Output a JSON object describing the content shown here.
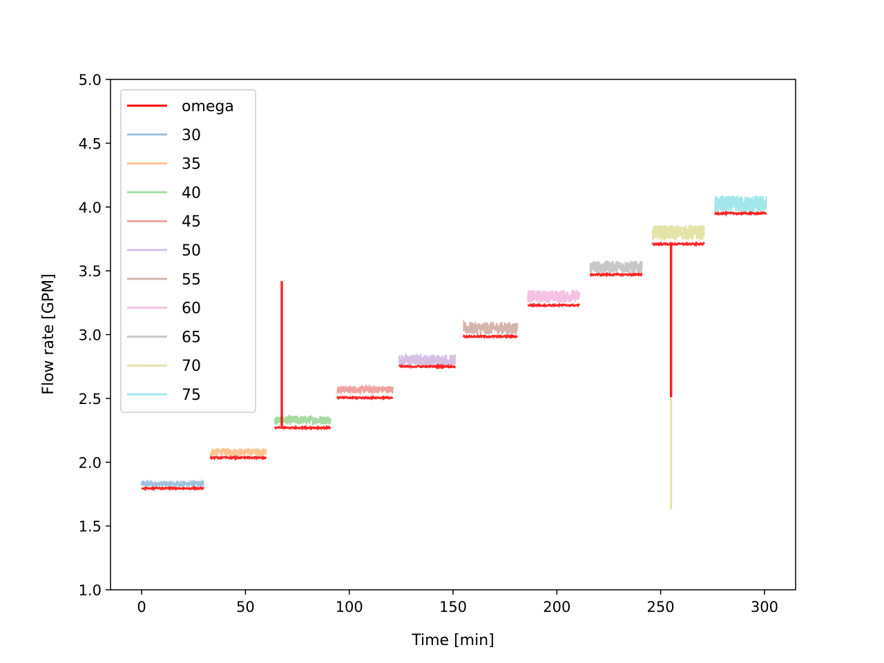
{
  "chart_data": {
    "type": "line",
    "title": "",
    "xlabel": "Time [min]",
    "ylabel": "Flow rate [GPM]",
    "xlim": [
      -15,
      315
    ],
    "ylim": [
      1.0,
      5.0
    ],
    "x_ticks": [
      0,
      50,
      100,
      150,
      200,
      250,
      300
    ],
    "x_tick_labels": [
      "0",
      "50",
      "100",
      "150",
      "200",
      "250",
      "300"
    ],
    "y_ticks": [
      1.0,
      1.5,
      2.0,
      2.5,
      3.0,
      3.5,
      4.0,
      4.5,
      5.0
    ],
    "y_tick_labels": [
      "1.0",
      "1.5",
      "2.0",
      "2.5",
      "3.0",
      "3.5",
      "4.0",
      "4.5",
      "5.0"
    ],
    "grid": false,
    "legend_position": "top-left",
    "series": [
      {
        "name": "30",
        "color": "#9fc2de",
        "x_range": [
          0,
          30
        ],
        "mean": 1.83,
        "band": 0.025
      },
      {
        "name": "35",
        "color": "#ffc592",
        "x_range": [
          33,
          60
        ],
        "mean": 2.08,
        "band": 0.03
      },
      {
        "name": "40",
        "color": "#a6dba1",
        "x_range": [
          64,
          91
        ],
        "mean": 2.33,
        "band": 0.035
      },
      {
        "name": "45",
        "color": "#efa3a1",
        "x_range": [
          94,
          121
        ],
        "mean": 2.57,
        "band": 0.03
      },
      {
        "name": "50",
        "color": "#d5c0e4",
        "x_range": [
          124,
          151
        ],
        "mean": 2.8,
        "band": 0.045
      },
      {
        "name": "55",
        "color": "#d3b6ae",
        "x_range": [
          155,
          181
        ],
        "mean": 3.05,
        "band": 0.05
      },
      {
        "name": "60",
        "color": "#f5c2e3",
        "x_range": [
          186,
          211
        ],
        "mean": 3.3,
        "band": 0.05
      },
      {
        "name": "65",
        "color": "#c7c7c7",
        "x_range": [
          216,
          241
        ],
        "mean": 3.53,
        "band": 0.05
      },
      {
        "name": "70",
        "color": "#e4e4a8",
        "x_range": [
          246,
          271
        ],
        "mean": 3.8,
        "band": 0.06,
        "spike": {
          "x": 255,
          "y_min": 1.63,
          "y_max": 3.72
        }
      },
      {
        "name": "75",
        "color": "#a2e6ea",
        "x_range": [
          276,
          301
        ],
        "mean": 4.02,
        "band": 0.07
      }
    ],
    "omega": {
      "name": "omega",
      "color": "#ff0000",
      "segments": [
        {
          "x_range": [
            0,
            30
          ],
          "mean": 1.795
        },
        {
          "x_range": [
            33,
            60
          ],
          "mean": 2.035
        },
        {
          "x_range": [
            64,
            91
          ],
          "mean": 2.27
        },
        {
          "x_range": [
            94,
            121
          ],
          "mean": 2.505
        },
        {
          "x_range": [
            124,
            151
          ],
          "mean": 2.75
        },
        {
          "x_range": [
            155,
            181
          ],
          "mean": 2.985
        },
        {
          "x_range": [
            186,
            211
          ],
          "mean": 3.23
        },
        {
          "x_range": [
            216,
            241
          ],
          "mean": 3.47
        },
        {
          "x_range": [
            246,
            271
          ],
          "mean": 3.71
        },
        {
          "x_range": [
            276,
            301
          ],
          "mean": 3.95
        }
      ],
      "spikes": [
        {
          "x": 67.5,
          "y_min": 2.27,
          "y_max": 3.42
        },
        {
          "x": 255,
          "y_min": 2.51,
          "y_max": 3.71
        }
      ]
    }
  }
}
